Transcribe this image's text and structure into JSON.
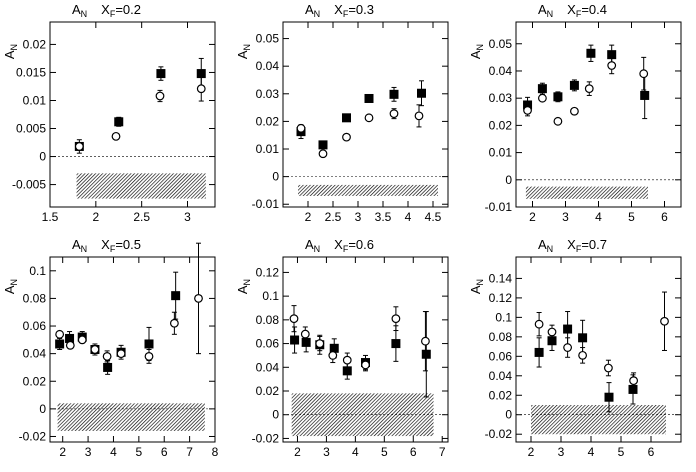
{
  "chart_data": [
    {
      "type": "scatter",
      "title_main": "A",
      "title_sub": "N",
      "xf_main": "X",
      "xf_sub": "F",
      "xf_value": "=0.2",
      "ylabel_main": "A",
      "ylabel_sub": "N",
      "xlim": [
        1.5,
        3.3
      ],
      "ylim": [
        -0.009,
        0.024
      ],
      "xticks": [
        1.5,
        2,
        2.5,
        3
      ],
      "xtick_labels": [
        "1.5",
        "2",
        "2.5",
        "3"
      ],
      "yticks": [
        -0.005,
        0,
        0.005,
        0.01,
        0.015,
        0.02
      ],
      "ytick_labels": [
        "-0.005",
        "0",
        "0.005",
        "0.01",
        "0.015",
        "0.02"
      ],
      "band": {
        "x": [
          1.79,
          3.2
        ],
        "y": [
          -0.0075,
          -0.003
        ]
      },
      "series": [
        {
          "marker": "filled-square",
          "x": [
            1.82,
            2.25,
            2.71,
            3.15
          ],
          "y": [
            0.0018,
            0.0062,
            0.0148,
            0.0148
          ],
          "err": [
            0.0012,
            0.0008,
            0.0012,
            0.0027
          ]
        },
        {
          "marker": "open-circle",
          "x": [
            1.82,
            2.22,
            2.7,
            3.15
          ],
          "y": [
            0.0018,
            0.0036,
            0.0108,
            0.0121
          ],
          "err": [
            0.0007,
            0.0005,
            0.001,
            0.0022
          ]
        }
      ]
    },
    {
      "type": "scatter",
      "title_main": "A",
      "title_sub": "N",
      "xf_main": "X",
      "xf_sub": "F",
      "xf_value": "=0.3",
      "ylabel_main": "A",
      "ylabel_sub": "N",
      "xlim": [
        1.5,
        4.8
      ],
      "ylim": [
        -0.011,
        0.056
      ],
      "xticks": [
        2,
        2.5,
        3,
        3.5,
        4,
        4.5
      ],
      "xtick_labels": [
        "2",
        "2.5",
        "3",
        "3.5",
        "4",
        "4.5"
      ],
      "yticks": [
        -0.01,
        0,
        0.01,
        0.02,
        0.03,
        0.04,
        0.05
      ],
      "ytick_labels": [
        "-0.01",
        "0",
        "0.01",
        "0.02",
        "0.03",
        "0.04",
        "0.05"
      ],
      "band": {
        "x": [
          1.8,
          4.6
        ],
        "y": [
          -0.007,
          -0.003
        ]
      },
      "series": [
        {
          "marker": "filled-square",
          "x": [
            1.86,
            2.3,
            2.77,
            3.22,
            3.72,
            4.27
          ],
          "y": [
            0.0163,
            0.0115,
            0.0213,
            0.0283,
            0.0298,
            0.0302
          ],
          "err": [
            0.0025,
            0.0015,
            0.0015,
            0.0015,
            0.0025,
            0.0045
          ]
        },
        {
          "marker": "open-circle",
          "x": [
            1.86,
            2.3,
            2.77,
            3.22,
            3.72,
            4.22
          ],
          "y": [
            0.0175,
            0.0083,
            0.0143,
            0.0213,
            0.0228,
            0.022
          ],
          "err": [
            0.0015,
            0.0008,
            0.001,
            0.0012,
            0.0018,
            0.004
          ]
        }
      ]
    },
    {
      "type": "scatter",
      "title_main": "A",
      "title_sub": "N",
      "xf_main": "X",
      "xf_sub": "F",
      "xf_value": "=0.4",
      "ylabel_main": "A",
      "ylabel_sub": "N",
      "xlim": [
        1.5,
        6.5
      ],
      "ylim": [
        -0.01,
        0.058
      ],
      "xticks": [
        2,
        3,
        4,
        5,
        6
      ],
      "xtick_labels": [
        "2",
        "3",
        "4",
        "5",
        "6"
      ],
      "yticks": [
        -0.01,
        0,
        0.01,
        0.02,
        0.03,
        0.04,
        0.05
      ],
      "ytick_labels": [
        "-0.01",
        "0",
        "0.01",
        "0.02",
        "0.03",
        "0.04",
        "0.05"
      ],
      "band": {
        "x": [
          1.8,
          5.5
        ],
        "y": [
          -0.007,
          -0.0025
        ]
      },
      "series": [
        {
          "marker": "filled-square",
          "x": [
            1.85,
            2.3,
            2.77,
            3.27,
            3.77,
            4.4,
            5.4
          ],
          "y": [
            0.0275,
            0.0335,
            0.0305,
            0.0347,
            0.0465,
            0.046,
            0.031
          ],
          "err": [
            0.0028,
            0.002,
            0.0018,
            0.002,
            0.003,
            0.0035,
            0.0085
          ]
        },
        {
          "marker": "open-circle",
          "x": [
            1.85,
            2.3,
            2.77,
            3.27,
            3.72,
            4.4,
            5.37
          ],
          "y": [
            0.0255,
            0.03,
            0.0215,
            0.0252,
            0.0335,
            0.042,
            0.039
          ],
          "err": [
            0.002,
            0.0015,
            0.0015,
            0.0015,
            0.0025,
            0.003,
            0.006
          ]
        }
      ]
    },
    {
      "type": "scatter",
      "title_main": "A",
      "title_sub": "N",
      "xf_main": "X",
      "xf_sub": "F",
      "xf_value": "=0.5",
      "ylabel_main": "A",
      "ylabel_sub": "N",
      "xlim": [
        1.5,
        8
      ],
      "ylim": [
        -0.024,
        0.11
      ],
      "xticks": [
        2,
        3,
        4,
        5,
        6,
        7,
        8
      ],
      "xtick_labels": [
        "2",
        "3",
        "4",
        "5",
        "6",
        "7",
        "8"
      ],
      "yticks": [
        -0.02,
        0,
        0.02,
        0.04,
        0.06,
        0.08,
        0.1
      ],
      "ytick_labels": [
        "-0.02",
        "0",
        "0.02",
        "0.04",
        "0.06",
        "0.08",
        "0.1"
      ],
      "band": {
        "x": [
          1.8,
          7.6
        ],
        "y": [
          -0.016,
          0.004
        ]
      },
      "series": [
        {
          "marker": "filled-square",
          "x": [
            1.88,
            2.27,
            2.77,
            3.27,
            3.77,
            4.3,
            5.4,
            6.45
          ],
          "y": [
            0.047,
            0.051,
            0.052,
            0.043,
            0.03,
            0.041,
            0.047,
            0.082
          ],
          "err": [
            0.004,
            0.005,
            0.004,
            0.004,
            0.005,
            0.005,
            0.012,
            0.017
          ]
        },
        {
          "marker": "open-circle",
          "x": [
            1.88,
            2.3,
            2.77,
            3.27,
            3.75,
            4.3,
            5.4,
            6.4,
            7.35
          ],
          "y": [
            0.054,
            0.046,
            0.05,
            0.043,
            0.038,
            0.04,
            0.038,
            0.062,
            0.08
          ],
          "err": [
            0.003,
            0.002,
            0.002,
            0.002,
            0.004,
            0.003,
            0.005,
            0.008,
            0.04
          ]
        }
      ]
    },
    {
      "type": "scatter",
      "title_main": "A",
      "title_sub": "N",
      "xf_main": "X",
      "xf_sub": "F",
      "xf_value": "=0.6",
      "ylabel_main": "A",
      "ylabel_sub": "N",
      "xlim": [
        1.5,
        7.2
      ],
      "ylim": [
        -0.023,
        0.133
      ],
      "xticks": [
        2,
        3,
        4,
        5,
        6,
        7
      ],
      "xtick_labels": [
        "2",
        "3",
        "4",
        "5",
        "6",
        "7"
      ],
      "yticks": [
        -0.02,
        0,
        0.02,
        0.04,
        0.06,
        0.08,
        0.1,
        0.12
      ],
      "ytick_labels": [
        "-0.02",
        "0",
        "0.02",
        "0.04",
        "0.06",
        "0.08",
        "0.1",
        "0.12"
      ],
      "band": {
        "x": [
          1.8,
          6.7
        ],
        "y": [
          -0.018,
          0.018
        ]
      },
      "series": [
        {
          "marker": "filled-square",
          "x": [
            1.9,
            2.3,
            2.77,
            3.27,
            3.72,
            4.35,
            5.4,
            6.45
          ],
          "y": [
            0.063,
            0.061,
            0.059,
            0.056,
            0.037,
            0.044,
            0.06,
            0.051
          ],
          "err": [
            0.011,
            0.008,
            0.008,
            0.008,
            0.007,
            0.006,
            0.015,
            0.036
          ]
        },
        {
          "marker": "open-circle",
          "x": [
            1.88,
            2.27,
            2.77,
            3.22,
            3.72,
            4.35,
            5.4,
            6.42
          ],
          "y": [
            0.081,
            0.068,
            0.06,
            0.05,
            0.046,
            0.042,
            0.081,
            0.062
          ],
          "err": [
            0.011,
            0.006,
            0.006,
            0.006,
            0.006,
            0.005,
            0.01,
            0.025
          ]
        }
      ]
    },
    {
      "type": "scatter",
      "title_main": "A",
      "title_sub": "N",
      "xf_main": "X",
      "xf_sub": "F",
      "xf_value": "=0.7",
      "ylabel_main": "A",
      "ylabel_sub": "N",
      "xlim": [
        1.5,
        7
      ],
      "ylim": [
        -0.028,
        0.162
      ],
      "xticks": [
        2,
        3,
        4,
        5,
        6
      ],
      "xtick_labels": [
        "2",
        "3",
        "4",
        "5",
        "6"
      ],
      "yticks": [
        -0.02,
        0,
        0.02,
        0.04,
        0.06,
        0.08,
        0.1,
        0.12,
        0.14
      ],
      "ytick_labels": [
        "-0.02",
        "0",
        "0.02",
        "0.04",
        "0.06",
        "0.08",
        "0.1",
        "0.12",
        "0.14"
      ],
      "band": {
        "x": [
          2.0,
          6.5
        ],
        "y": [
          -0.02,
          0.01
        ]
      },
      "series": [
        {
          "marker": "filled-square",
          "x": [
            2.27,
            2.7,
            3.22,
            3.72,
            4.6,
            5.4
          ],
          "y": [
            0.064,
            0.076,
            0.088,
            0.079,
            0.018,
            0.026
          ],
          "err": [
            0.015,
            0.01,
            0.018,
            0.018,
            0.015,
            0.015
          ]
        },
        {
          "marker": "open-circle",
          "x": [
            2.27,
            2.7,
            3.22,
            3.72,
            4.58,
            5.42,
            6.45
          ],
          "y": [
            0.093,
            0.085,
            0.069,
            0.061,
            0.048,
            0.035,
            0.096
          ],
          "err": [
            0.012,
            0.007,
            0.01,
            0.008,
            0.008,
            0.008,
            0.03
          ]
        }
      ]
    }
  ]
}
